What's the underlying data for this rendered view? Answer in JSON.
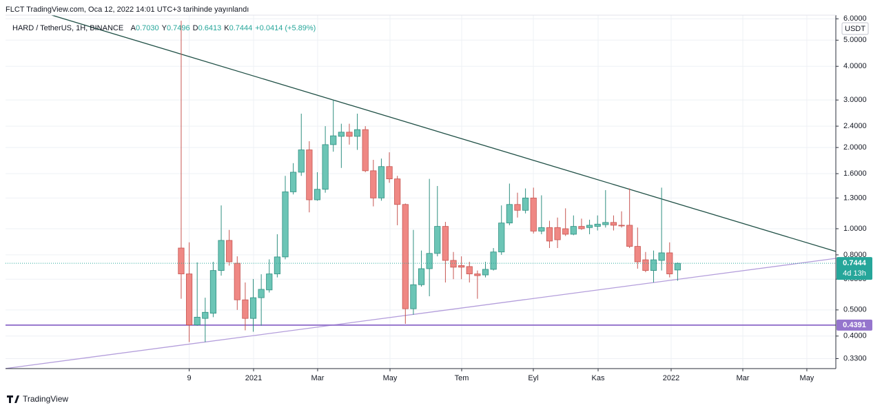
{
  "chart_data": {
    "type": "candlestick",
    "header": "FLCT TradingView.com, Oca 12, 2022 14:01 UTC+3 tarihinde yayınlandı",
    "legend": {
      "symbol": "HARD / TetherUS, 1H, BINANCE",
      "items": [
        {
          "prefix": "A",
          "label": "0.7030"
        },
        {
          "prefix": "Y",
          "label": "0.7496"
        },
        {
          "prefix": "D",
          "label": "0.6413"
        },
        {
          "prefix": "K"
        }
      ],
      "change": "+0.0414 (+5.89%)"
    },
    "currency": "USDT",
    "countdown": "4d 13h",
    "footer": "TradingView",
    "log_scale": true,
    "grid": true,
    "up_color": "#6cc5b6",
    "down_color": "#ef8884",
    "open": [
      0.848,
      0.68,
      0.44,
      0.465,
      0.486,
      0.7,
      0.905,
      0.745,
      0.545,
      0.465,
      0.555,
      0.593,
      0.68,
      0.786,
      1.37,
      1.62,
      1.96,
      1.28,
      1.4,
      2.05,
      2.2,
      2.28,
      2.2,
      2.33,
      1.64,
      1.3,
      1.7,
      1.53,
      1.23,
      0.505,
      0.62,
      0.711,
      0.81,
      1.02,
      0.763,
      0.73,
      0.724,
      0.68,
      0.674,
      0.707,
      0.82,
      1.05,
      1.23,
      1.17,
      1.3,
      0.98,
      1.01,
      1.01,
      1.0,
      0.954,
      1.02,
      1.01,
      1.02,
      1.035,
      1.055,
      1.03,
      1.03,
      0.86,
      0.767,
      0.7,
      0.763,
      0.814,
      0.703
    ],
    "high": [
      5.9,
      0.89,
      0.75,
      0.555,
      0.754,
      1.22,
      0.99,
      0.79,
      0.632,
      0.651,
      0.678,
      0.77,
      0.954,
      1.57,
      1.75,
      2.67,
      2.11,
      1.62,
      2.4,
      3.0,
      2.45,
      2.45,
      2.67,
      2.4,
      1.8,
      1.82,
      1.92,
      1.57,
      1.24,
      0.99,
      0.83,
      1.53,
      1.44,
      1.06,
      0.82,
      0.79,
      0.754,
      0.7,
      0.754,
      0.848,
      1.22,
      1.47,
      1.36,
      1.41,
      1.42,
      1.33,
      1.07,
      1.1,
      1.19,
      1.12,
      1.09,
      1.08,
      1.12,
      1.39,
      1.12,
      1.16,
      1.41,
      1.01,
      0.82,
      0.83,
      1.42,
      0.89,
      0.7496
    ],
    "low": [
      0.55,
      0.38,
      0.437,
      0.38,
      0.47,
      0.67,
      0.73,
      0.5,
      0.42,
      0.415,
      0.437,
      0.58,
      0.66,
      0.77,
      1.34,
      1.57,
      1.15,
      1.27,
      1.36,
      1.93,
      1.68,
      2.05,
      1.96,
      1.62,
      1.21,
      1.27,
      1.48,
      1.03,
      0.444,
      0.48,
      0.61,
      0.562,
      0.79,
      0.632,
      0.65,
      0.65,
      0.632,
      0.55,
      0.66,
      0.7,
      0.8,
      1.03,
      1.1,
      1.14,
      0.96,
      0.954,
      0.848,
      0.848,
      0.94,
      0.946,
      0.99,
      0.954,
      0.985,
      1.01,
      0.985,
      1.01,
      0.848,
      0.711,
      0.69,
      0.632,
      0.7,
      0.66,
      0.6413
    ],
    "close": [
      0.68,
      0.44,
      0.47,
      0.49,
      0.7,
      0.905,
      0.754,
      0.545,
      0.465,
      0.555,
      0.596,
      0.68,
      0.786,
      1.37,
      1.62,
      1.96,
      1.28,
      1.4,
      2.05,
      2.21,
      2.28,
      2.2,
      2.33,
      1.64,
      1.3,
      1.7,
      1.53,
      1.23,
      0.505,
      0.62,
      0.711,
      0.81,
      1.02,
      0.763,
      0.72,
      0.72,
      0.68,
      0.67,
      0.707,
      0.82,
      1.05,
      1.23,
      1.17,
      1.3,
      0.98,
      1.01,
      0.9,
      0.91,
      0.954,
      1.02,
      1.0,
      1.03,
      1.04,
      1.055,
      1.03,
      1.025,
      0.86,
      0.754,
      0.7,
      0.767,
      0.814,
      0.68,
      0.7444
    ],
    "xlim": [
      -21.94,
      81.76
    ],
    "xticks": [
      {
        "value": 1,
        "label": "9"
      },
      {
        "value": 9.04,
        "label": "2021"
      },
      {
        "value": 17.04,
        "label": "Mar"
      },
      {
        "value": 26.08,
        "label": "May"
      },
      {
        "value": 35.03,
        "label": "Tem"
      },
      {
        "value": 43.98,
        "label": "Eyl"
      },
      {
        "value": 52.07,
        "label": "Kas"
      },
      {
        "value": 61.19,
        "label": "2022"
      },
      {
        "value": 70.14,
        "label": "Mar"
      },
      {
        "value": 78.14,
        "label": "May"
      }
    ],
    "ylim": [
      0.303,
      6.19
    ],
    "yticks": [
      {
        "value": 0.33,
        "label": "0.3300"
      },
      {
        "value": 0.4,
        "label": "0.4000"
      },
      {
        "value": 0.5,
        "label": "0.5000"
      },
      {
        "value": 0.65,
        "label": "0.6500"
      },
      {
        "value": 0.8,
        "label": "0.8000"
      },
      {
        "value": 1,
        "label": "1.0000"
      },
      {
        "value": 1.3,
        "label": "1.3000"
      },
      {
        "value": 1.6,
        "label": "1.6000"
      },
      {
        "value": 2,
        "label": "2.0000"
      },
      {
        "value": 2.4,
        "label": "2.4000"
      },
      {
        "value": 3,
        "label": "3.0000"
      },
      {
        "value": 4,
        "label": "4.0000"
      },
      {
        "value": 5,
        "label": "5.0000"
      },
      {
        "value": 6,
        "label": "6.0000"
      }
    ],
    "trendlines": [
      {
        "color": "#1f4f45",
        "x": [
          19,
          56
        ],
        "y": [
          3.0,
          1.4
        ]
      },
      {
        "color": "#b39ddb",
        "x": [
          0,
          62
        ],
        "y": [
          0.37,
          0.649
        ]
      }
    ],
    "price_lines": [
      {
        "value": 0.4391,
        "color": "#9575cd"
      }
    ]
  }
}
